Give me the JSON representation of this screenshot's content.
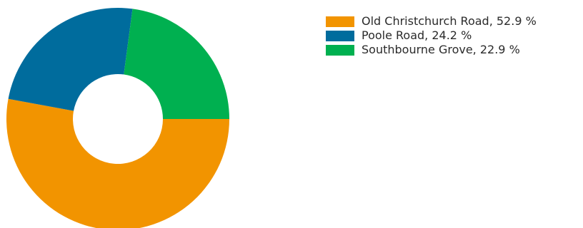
{
  "chart_data": {
    "type": "pie",
    "donut": true,
    "categories": [
      "Old Christchurch Road",
      "Poole Road",
      "Southbourne Grove"
    ],
    "values": [
      52.9,
      24.2,
      22.9
    ],
    "unit": "%",
    "colors": [
      "#f29400",
      "#006c9d",
      "#00b050"
    ],
    "legend": {
      "position": "top-right",
      "items": [
        {
          "label": "Old Christchurch Road, 52.9 %",
          "color": "#f29400"
        },
        {
          "label": "Poole Road, 24.2 %",
          "color": "#006c9d"
        },
        {
          "label": "Southbourne Grove, 22.9 %",
          "color": "#00b050"
        }
      ]
    }
  }
}
